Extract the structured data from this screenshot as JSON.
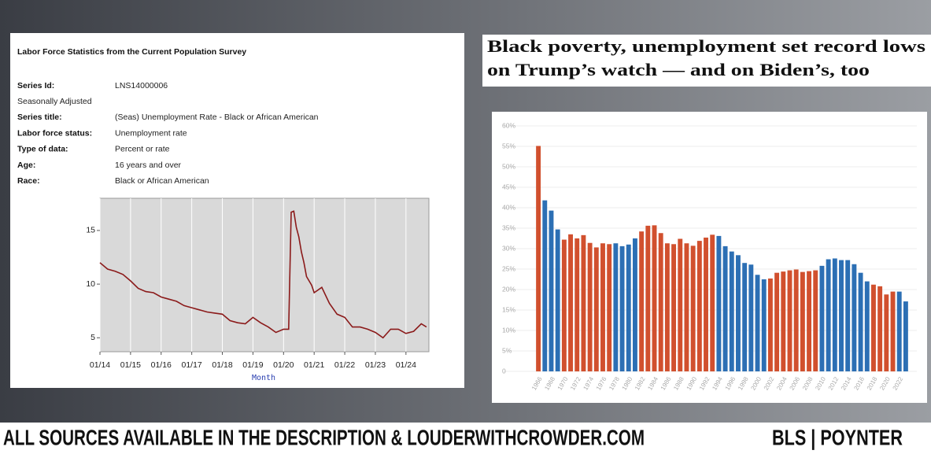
{
  "panel": {
    "title": "Labor Force Statistics from the Current Population Survey",
    "rows": [
      [
        "Series Id:",
        "LNS14000006"
      ],
      [
        "Seasonally Adjusted"
      ],
      [
        "Series title:",
        "(Seas) Unemployment Rate - Black or African American"
      ],
      [
        "Labor force status:",
        "Unemployment rate"
      ],
      [
        "Type of data:",
        "Percent or rate"
      ],
      [
        "Age:",
        "16 years and over"
      ],
      [
        "Race:",
        "Black or African American"
      ]
    ]
  },
  "headline": [
    "Black poverty, unemployment set record lows",
    "on Trump’s watch — and on Biden’s, too"
  ],
  "footer": {
    "left": "ALL SOURCES AVAILABLE IN THE DESCRIPTION & LOUDERWITHCROWDER.COM",
    "right": "BLS | POYNTER"
  },
  "chart_data": [
    {
      "type": "line",
      "x_label": "Month",
      "color": "#8b1a1a",
      "x": [
        2014.0,
        2014.25,
        2014.5,
        2014.75,
        2015.0,
        2015.25,
        2015.5,
        2015.75,
        2016.0,
        2016.25,
        2016.5,
        2016.75,
        2017.0,
        2017.25,
        2017.5,
        2017.75,
        2018.0,
        2018.25,
        2018.5,
        2018.75,
        2019.0,
        2019.25,
        2019.5,
        2019.75,
        2020.0,
        2020.167,
        2020.25,
        2020.333,
        2020.417,
        2020.5,
        2020.583,
        2020.667,
        2020.75,
        2020.917,
        2021.0,
        2021.25,
        2021.5,
        2021.75,
        2022.0,
        2022.25,
        2022.5,
        2022.75,
        2023.0,
        2023.25,
        2023.5,
        2023.75,
        2024.0,
        2024.25,
        2024.5,
        2024.67
      ],
      "values": [
        12.0,
        11.4,
        11.2,
        10.9,
        10.3,
        9.6,
        9.3,
        9.2,
        8.8,
        8.6,
        8.4,
        8.0,
        7.8,
        7.6,
        7.4,
        7.3,
        7.2,
        6.6,
        6.4,
        6.3,
        6.9,
        6.4,
        6.0,
        5.5,
        5.8,
        5.8,
        16.7,
        16.8,
        15.3,
        14.4,
        13.0,
        12.0,
        10.7,
        9.9,
        9.2,
        9.7,
        8.2,
        7.2,
        6.9,
        6.0,
        6.0,
        5.8,
        5.5,
        5.0,
        5.8,
        5.8,
        5.4,
        5.6,
        6.3,
        6.0
      ],
      "xlim": [
        2014,
        2024.75
      ],
      "xticks": [
        {
          "value": 2014,
          "label": "01/14"
        },
        {
          "value": 2015,
          "label": "01/15"
        },
        {
          "value": 2016,
          "label": "01/16"
        },
        {
          "value": 2017,
          "label": "01/17"
        },
        {
          "value": 2018,
          "label": "01/18"
        },
        {
          "value": 2019,
          "label": "01/19"
        },
        {
          "value": 2020,
          "label": "01/20"
        },
        {
          "value": 2021,
          "label": "01/21"
        },
        {
          "value": 2022,
          "label": "01/22"
        },
        {
          "value": 2023,
          "label": "01/23"
        },
        {
          "value": 2024,
          "label": "01/24"
        }
      ],
      "ylim": [
        3.7,
        18
      ],
      "yticks": [
        5,
        10,
        15
      ],
      "grid": true
    },
    {
      "type": "bar",
      "categories": [
        "1966",
        null,
        "1968",
        null,
        "1970",
        null,
        "1972",
        null,
        "1974",
        null,
        "1976",
        null,
        "1978",
        null,
        "1980",
        null,
        "1982",
        null,
        "1984",
        null,
        "1986",
        null,
        "1988",
        null,
        "1990",
        null,
        "1992",
        null,
        "1994",
        null,
        "1996",
        null,
        "1998",
        null,
        "2000",
        null,
        "2002",
        null,
        "2004",
        null,
        "2006",
        null,
        "2008",
        null,
        "2010",
        null,
        "2012",
        null,
        "2014",
        null,
        "2016",
        null,
        "2018",
        null,
        "2020",
        null,
        "2022",
        null
      ],
      "values": [
        55.1,
        41.8,
        39.3,
        34.7,
        32.2,
        33.5,
        32.5,
        33.3,
        31.4,
        30.3,
        31.3,
        31.1,
        31.3,
        30.6,
        31.0,
        32.5,
        34.2,
        35.6,
        35.7,
        33.8,
        31.3,
        31.1,
        32.4,
        31.3,
        30.7,
        31.9,
        32.7,
        33.4,
        33.1,
        30.6,
        29.3,
        28.4,
        26.5,
        26.1,
        23.6,
        22.5,
        22.7,
        24.1,
        24.4,
        24.7,
        24.9,
        24.3,
        24.5,
        24.7,
        25.8,
        27.4,
        27.6,
        27.2,
        27.2,
        26.2,
        24.1,
        22.0,
        21.2,
        20.8,
        18.8,
        19.5,
        19.5,
        17.1
      ],
      "colors": [
        "#d1502e",
        "#2c6fb4",
        "#2c6fb4",
        "#2c6fb4",
        "#d1502e",
        "#d1502e",
        "#d1502e",
        "#d1502e",
        "#d1502e",
        "#d1502e",
        "#d1502e",
        "#d1502e",
        "#2c6fb4",
        "#2c6fb4",
        "#2c6fb4",
        "#2c6fb4",
        "#d1502e",
        "#d1502e",
        "#d1502e",
        "#d1502e",
        "#d1502e",
        "#d1502e",
        "#d1502e",
        "#d1502e",
        "#d1502e",
        "#d1502e",
        "#d1502e",
        "#d1502e",
        "#2c6fb4",
        "#2c6fb4",
        "#2c6fb4",
        "#2c6fb4",
        "#2c6fb4",
        "#2c6fb4",
        "#2c6fb4",
        "#2c6fb4",
        "#d1502e",
        "#d1502e",
        "#d1502e",
        "#d1502e",
        "#d1502e",
        "#d1502e",
        "#d1502e",
        "#d1502e",
        "#2c6fb4",
        "#2c6fb4",
        "#2c6fb4",
        "#2c6fb4",
        "#2c6fb4",
        "#2c6fb4",
        "#2c6fb4",
        "#2c6fb4",
        "#d1502e",
        "#d1502e",
        "#d1502e",
        "#d1502e",
        "#2c6fb4",
        "#2c6fb4"
      ],
      "ylim": [
        0,
        60
      ],
      "yticks": [
        0,
        {
          "value": 5,
          "label": "5%"
        },
        {
          "value": 10,
          "label": "10%"
        },
        {
          "value": 15,
          "label": "15%"
        },
        {
          "value": 20,
          "label": "20%"
        },
        {
          "value": 25,
          "label": "25%"
        },
        {
          "value": 30,
          "label": "30%"
        },
        {
          "value": 35,
          "label": "35%"
        },
        {
          "value": 40,
          "label": "40%"
        },
        {
          "value": 45,
          "label": "45%"
        },
        {
          "value": 50,
          "label": "50%"
        },
        {
          "value": 55,
          "label": "55%"
        },
        {
          "value": 60,
          "label": "60%"
        }
      ],
      "grid": true
    }
  ]
}
